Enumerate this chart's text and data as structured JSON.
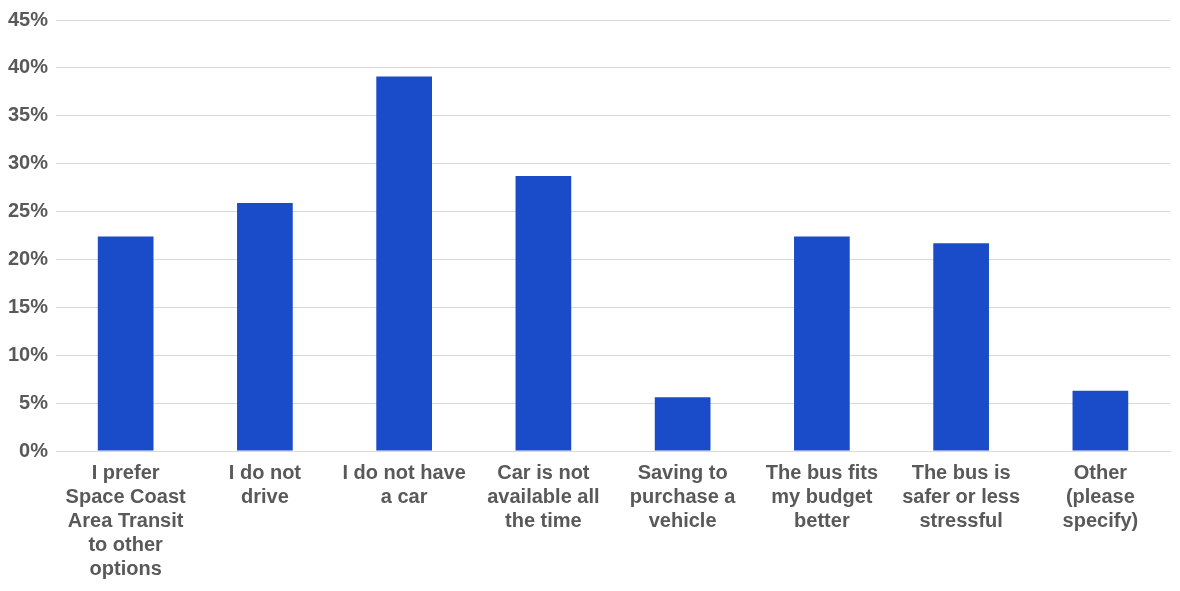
{
  "chart_data": {
    "type": "bar",
    "categories": [
      "I prefer\nSpace Coast\nArea Transit\nto other\noptions",
      "I do not\ndrive",
      "I do not have\na car",
      "Car is not\navailable all\nthe time",
      "Saving to\npurchase a\nvehicle",
      "The bus fits\nmy budget\nbetter",
      "The bus is\nsafer or less\nstressful",
      "Other\n(please\nspecify)"
    ],
    "values": [
      22.4,
      25.9,
      39.1,
      28.7,
      5.6,
      22.4,
      21.7,
      6.3
    ],
    "color": "#1a4bc8",
    "ylim": [
      0,
      45
    ],
    "yticks": [
      {
        "value": 0,
        "label": "0%"
      },
      {
        "value": 5,
        "label": "5%"
      },
      {
        "value": 10,
        "label": "10%"
      },
      {
        "value": 15,
        "label": "15%"
      },
      {
        "value": 20,
        "label": "20%"
      },
      {
        "value": 25,
        "label": "25%"
      },
      {
        "value": 30,
        "label": "30%"
      },
      {
        "value": 35,
        "label": "35%"
      },
      {
        "value": 40,
        "label": "40%"
      },
      {
        "value": 45,
        "label": "45%"
      }
    ],
    "grid": "y",
    "legend": false
  }
}
